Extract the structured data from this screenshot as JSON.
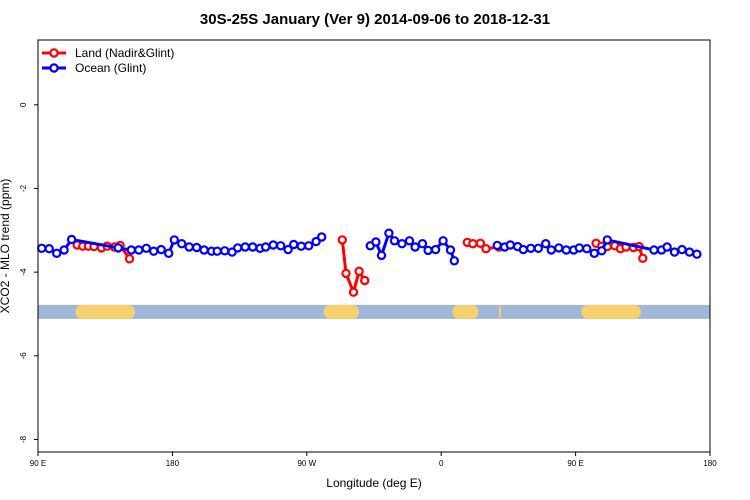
{
  "chart_data": {
    "type": "line",
    "title": "30S-25S January (Ver 9)   2014-09-06 to 2018-12-31",
    "xlabel": "Longitude (deg E)",
    "ylabel": "XCO2 - MLO trend (ppm)",
    "xlim": [
      90,
      450
    ],
    "ylim": [
      -8.3,
      1.55
    ],
    "x_ticks": [
      {
        "value": 90,
        "label": "90 E"
      },
      {
        "value": 162,
        "label": "180"
      },
      {
        "value": 234,
        "label": "90 W"
      },
      {
        "value": 306,
        "label": "0"
      },
      {
        "value": 378,
        "label": "90 E"
      },
      {
        "value": 450,
        "label": "180"
      }
    ],
    "y_ticks": [
      {
        "value": 0,
        "label": "0"
      },
      {
        "value": -2,
        "label": "-2"
      },
      {
        "value": -4,
        "label": "-4"
      },
      {
        "value": -6,
        "label": "-6"
      },
      {
        "value": -8,
        "label": "-8"
      }
    ],
    "legend_position": "top-left",
    "series": [
      {
        "name": "Land (Nadir&Glint)",
        "color": "#ff0000",
        "segments": [
          [
            [
              111,
              -3.35
            ],
            [
              114,
              -3.38
            ],
            [
              117,
              -3.38
            ],
            [
              120,
              -3.39
            ],
            [
              124,
              -3.42
            ],
            [
              127,
              -3.38
            ],
            [
              131,
              -3.4
            ],
            [
              134,
              -3.36
            ],
            [
              139,
              -3.68
            ]
          ],
          [
            [
              253,
              -3.23
            ],
            [
              255,
              -4.03
            ],
            [
              259,
              -4.48
            ],
            [
              262,
              -3.98
            ],
            [
              265,
              -4.2
            ]
          ],
          [
            [
              320,
              -3.29
            ],
            [
              323,
              -3.32
            ],
            [
              327,
              -3.31
            ],
            [
              330,
              -3.44
            ],
            [
              337,
              -3.4
            ]
          ],
          [
            [
              389,
              -3.31
            ],
            [
              392,
              -3.38
            ],
            [
              395,
              -3.39
            ],
            [
              399,
              -3.37
            ],
            [
              402,
              -3.44
            ],
            [
              405,
              -3.4
            ],
            [
              409,
              -3.41
            ],
            [
              412,
              -3.39
            ],
            [
              414,
              -3.67
            ]
          ]
        ]
      },
      {
        "name": "Ocean (Glint)",
        "color": "#0000ff",
        "segments": [
          [
            [
              92,
              -3.43
            ],
            [
              96,
              -3.44
            ],
            [
              100,
              -3.55
            ],
            [
              104,
              -3.47
            ],
            [
              108,
              -3.22
            ],
            [
              133,
              -3.42
            ],
            [
              140,
              -3.47
            ],
            [
              144,
              -3.47
            ],
            [
              148,
              -3.43
            ],
            [
              152,
              -3.5
            ],
            [
              156,
              -3.46
            ],
            [
              160,
              -3.55
            ],
            [
              163,
              -3.23
            ],
            [
              167,
              -3.32
            ],
            [
              171,
              -3.4
            ],
            [
              175,
              -3.41
            ],
            [
              179,
              -3.47
            ],
            [
              183,
              -3.5
            ],
            [
              186,
              -3.5
            ],
            [
              190,
              -3.49
            ],
            [
              194,
              -3.52
            ],
            [
              197,
              -3.42
            ],
            [
              201,
              -3.4
            ],
            [
              205,
              -3.4
            ],
            [
              209,
              -3.43
            ],
            [
              212,
              -3.4
            ],
            [
              216,
              -3.35
            ],
            [
              220,
              -3.37
            ],
            [
              224,
              -3.46
            ],
            [
              227,
              -3.34
            ],
            [
              231,
              -3.38
            ],
            [
              235,
              -3.37
            ],
            [
              239,
              -3.27
            ],
            [
              242,
              -3.16
            ]
          ],
          [
            [
              268,
              -3.37
            ],
            [
              271,
              -3.28
            ],
            [
              274,
              -3.6
            ],
            [
              278,
              -3.07
            ],
            [
              281,
              -3.25
            ],
            [
              285,
              -3.32
            ],
            [
              289,
              -3.25
            ],
            [
              292,
              -3.4
            ],
            [
              296,
              -3.32
            ],
            [
              299,
              -3.48
            ],
            [
              303,
              -3.46
            ],
            [
              307,
              -3.25
            ],
            [
              311,
              -3.47
            ],
            [
              313,
              -3.73
            ]
          ],
          [
            [
              336,
              -3.36
            ],
            [
              340,
              -3.4
            ],
            [
              343,
              -3.35
            ],
            [
              347,
              -3.39
            ],
            [
              350,
              -3.46
            ],
            [
              354,
              -3.43
            ],
            [
              358,
              -3.43
            ],
            [
              362,
              -3.32
            ],
            [
              365,
              -3.47
            ],
            [
              369,
              -3.42
            ],
            [
              373,
              -3.47
            ],
            [
              377,
              -3.47
            ],
            [
              380,
              -3.42
            ],
            [
              384,
              -3.44
            ],
            [
              388,
              -3.55
            ],
            [
              392,
              -3.49
            ],
            [
              395,
              -3.23
            ],
            [
              420,
              -3.47
            ],
            [
              424,
              -3.47
            ],
            [
              427,
              -3.4
            ],
            [
              431,
              -3.52
            ],
            [
              435,
              -3.46
            ],
            [
              439,
              -3.52
            ],
            [
              443,
              -3.57
            ]
          ]
        ]
      }
    ],
    "surface_bar": {
      "y": -4.95,
      "ocean_color": "#a0b8d8",
      "land_color": "#f7d070",
      "land_ranges": [
        [
          110,
          142
        ],
        [
          243,
          262
        ],
        [
          312,
          326
        ],
        [
          337,
          338
        ],
        [
          381,
          413
        ]
      ]
    }
  }
}
